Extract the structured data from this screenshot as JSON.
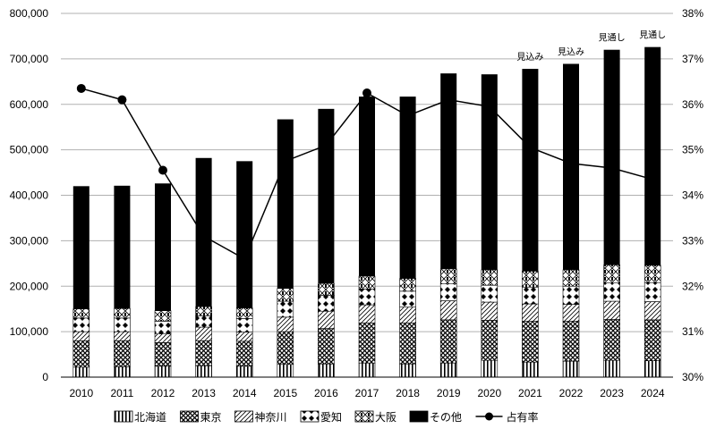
{
  "chart_data": {
    "type": "bar",
    "stacked": true,
    "categories": [
      "2010",
      "2011",
      "2012",
      "2013",
      "2014",
      "2015",
      "2016",
      "2017",
      "2018",
      "2019",
      "2020",
      "2021",
      "2022",
      "2023",
      "2024"
    ],
    "series": [
      {
        "name": "北海道",
        "pattern": "vertical-lines",
        "values": [
          22000,
          23000,
          24000,
          25000,
          24000,
          28000,
          29000,
          31000,
          29000,
          31000,
          37000,
          33000,
          35000,
          37000,
          36000
        ]
      },
      {
        "name": "東京",
        "pattern": "crosshatch",
        "values": [
          58000,
          57000,
          52000,
          55000,
          55000,
          72000,
          78000,
          88000,
          90000,
          95000,
          88000,
          90000,
          88000,
          90000,
          90000
        ]
      },
      {
        "name": "神奈川",
        "pattern": "diagonal",
        "values": [
          20000,
          20000,
          19000,
          30000,
          20000,
          32000,
          38000,
          40000,
          35000,
          42000,
          40000,
          38000,
          37000,
          40000,
          40000
        ]
      },
      {
        "name": "愛知",
        "pattern": "diamonds",
        "values": [
          30000,
          30000,
          28000,
          25000,
          30000,
          35000,
          35000,
          35000,
          35000,
          37000,
          37000,
          37000,
          40000,
          40000,
          42000
        ]
      },
      {
        "name": "大阪",
        "pattern": "checker",
        "values": [
          20000,
          21000,
          23000,
          20000,
          23000,
          28000,
          26000,
          28000,
          28000,
          33000,
          34000,
          35000,
          36000,
          40000,
          38000
        ]
      },
      {
        "name": "その他",
        "pattern": "solid",
        "values": [
          270000,
          270000,
          280000,
          327000,
          323000,
          372000,
          384000,
          395000,
          400000,
          430000,
          430000,
          445000,
          453000,
          473000,
          480000
        ]
      }
    ],
    "totals": [
      420000,
      421000,
      426000,
      482000,
      475000,
      567000,
      590000,
      617000,
      617000,
      668000,
      666000,
      678000,
      689000,
      720000,
      726000
    ],
    "line": {
      "name": "占有率",
      "axis": "right",
      "values": [
        36.35,
        36.1,
        34.55,
        33.1,
        32.6,
        34.75,
        35.1,
        36.25,
        35.75,
        36.1,
        35.95,
        35.05,
        34.7,
        34.6,
        34.35
      ]
    },
    "annotations": [
      {
        "category": "2021",
        "text": "見込み"
      },
      {
        "category": "2022",
        "text": "見込み"
      },
      {
        "category": "2023",
        "text": "見通し"
      },
      {
        "category": "2024",
        "text": "見通し"
      }
    ],
    "y_left": {
      "min": 0,
      "max": 800000,
      "step": 100000,
      "tick_labels": [
        "0",
        "100,000",
        "200,000",
        "300,000",
        "400,000",
        "500,000",
        "600,000",
        "700,000",
        "800,000"
      ]
    },
    "y_right": {
      "min": 30,
      "max": 38,
      "step": 1,
      "tick_labels": [
        "30%",
        "31%",
        "32%",
        "33%",
        "34%",
        "35%",
        "36%",
        "37%",
        "38%"
      ]
    },
    "grid": true,
    "legend_position": "bottom",
    "colors": {
      "bars": "#000000",
      "line": "#000000",
      "grid": "#b0b0b0",
      "background": "#ffffff"
    }
  }
}
